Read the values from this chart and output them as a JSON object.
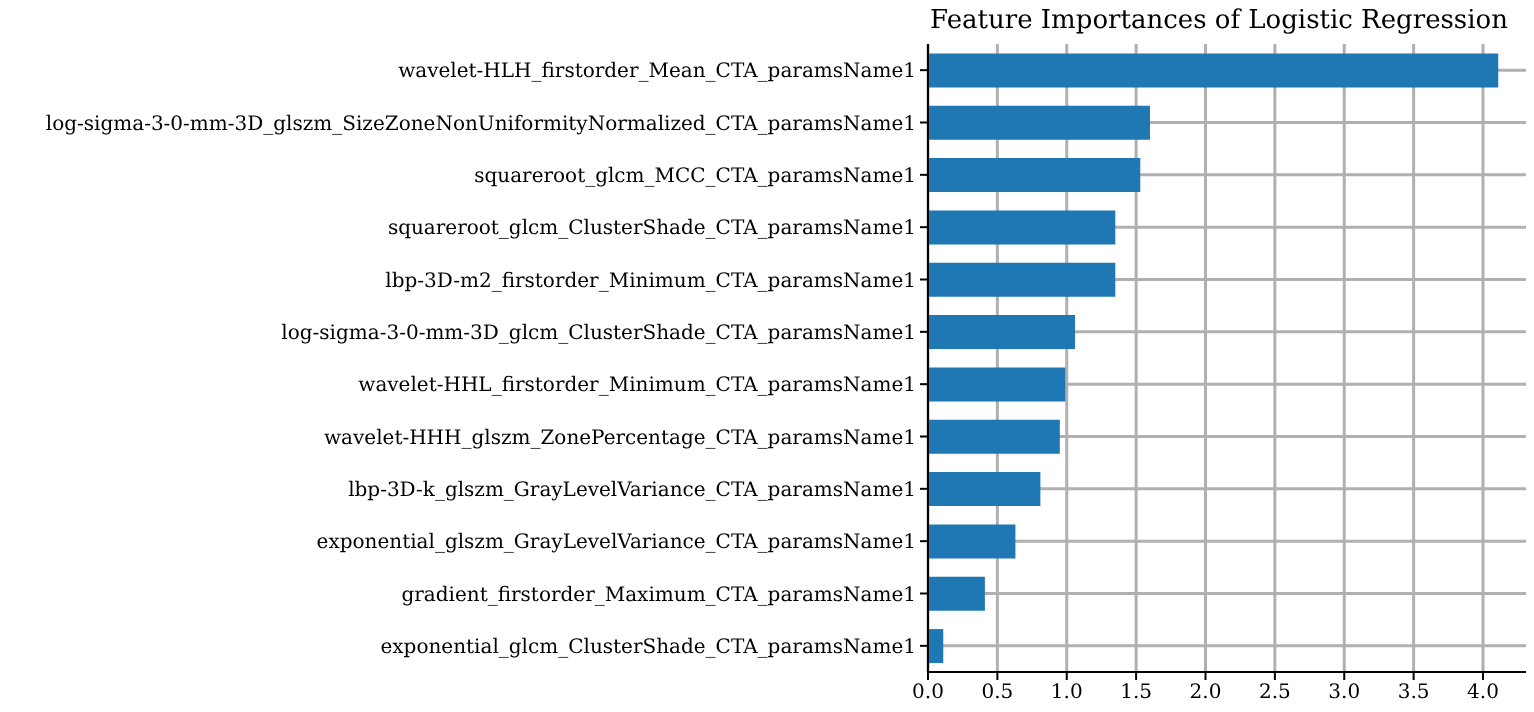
{
  "chart_data": {
    "type": "bar",
    "orientation": "horizontal",
    "title": "Feature Importances of Logistic Regression",
    "categories": [
      "wavelet-HLH_firstorder_Mean_CTA_paramsName1",
      "log-sigma-3-0-mm-3D_glszm_SizeZoneNonUniformityNormalized_CTA_paramsName1",
      "squareroot_glcm_MCC_CTA_paramsName1",
      "squareroot_glcm_ClusterShade_CTA_paramsName1",
      "lbp-3D-m2_firstorder_Minimum_CTA_paramsName1",
      "log-sigma-3-0-mm-3D_glcm_ClusterShade_CTA_paramsName1",
      "wavelet-HHL_firstorder_Minimum_CTA_paramsName1",
      "wavelet-HHH_glszm_ZonePercentage_CTA_paramsName1",
      "lbp-3D-k_glszm_GrayLevelVariance_CTA_paramsName1",
      "exponential_glszm_GrayLevelVariance_CTA_paramsName1",
      "gradient_firstorder_Maximum_CTA_paramsName1",
      "exponential_glcm_ClusterShade_CTA_paramsName1"
    ],
    "values": [
      4.11,
      1.6,
      1.53,
      1.35,
      1.35,
      1.06,
      0.99,
      0.95,
      0.81,
      0.63,
      0.41,
      0.11
    ],
    "color": "#1f77b4",
    "xlim": [
      0,
      4.31
    ],
    "xticks": [
      {
        "value": 0,
        "label": "0.0"
      },
      0.5,
      {
        "value": 1,
        "label": "1.0"
      },
      1.5,
      {
        "value": 2,
        "label": "2.0"
      },
      2.5,
      {
        "value": 3,
        "label": "3.0"
      },
      3.5,
      {
        "value": 4,
        "label": "4.0"
      }
    ],
    "grid": true
  }
}
